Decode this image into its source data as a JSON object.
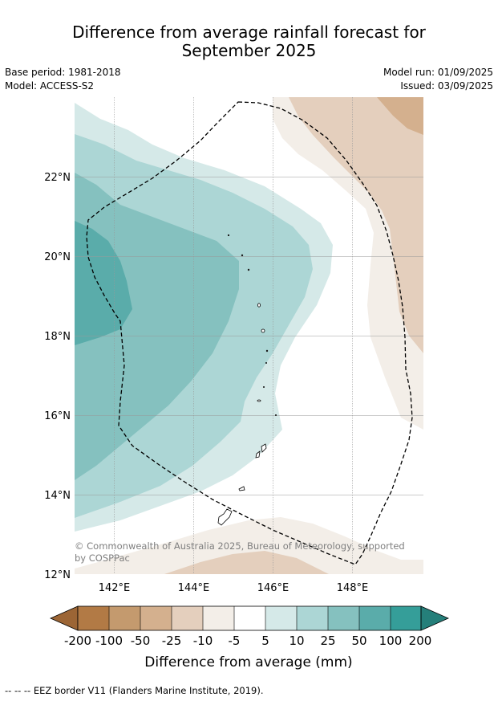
{
  "header": {
    "title_line1": "Difference from average rainfall forecast for",
    "title_line2": "September 2025",
    "base_period": "Base period: 1981-2018",
    "model": "Model: ACCESS-S2",
    "model_run": "Model run: 01/09/2025",
    "issued": "Issued: 03/09/2025"
  },
  "map": {
    "lat_labels": [
      "22°N",
      "20°N",
      "18°N",
      "16°N",
      "14°N",
      "12°N"
    ],
    "lon_labels": [
      "142°E",
      "144°E",
      "146°E",
      "148°E"
    ],
    "copyright_line1": "© Commonwealth of Australia 2025, Bureau of Meteorology, supported",
    "copyright_line2": "by COSPPac"
  },
  "colorbar": {
    "tick_labels": [
      "-200",
      "-100",
      "-50",
      "-25",
      "-10",
      "-5",
      "5",
      "10",
      "25",
      "50",
      "100",
      "200"
    ],
    "colors": [
      "#9c6535",
      "#b27a45",
      "#c49a6e",
      "#d4b08e",
      "#e4cfbd",
      "#f3eee8",
      "#ffffff",
      "#d5e9e8",
      "#acd6d5",
      "#85c1bf",
      "#5aacaa",
      "#359e99",
      "#257f7a"
    ],
    "label": "Difference from average (mm)"
  },
  "legend": {
    "eez_text": "--  --  -- EEZ border V11 (Flanders Marine Institute, 2019)."
  }
}
